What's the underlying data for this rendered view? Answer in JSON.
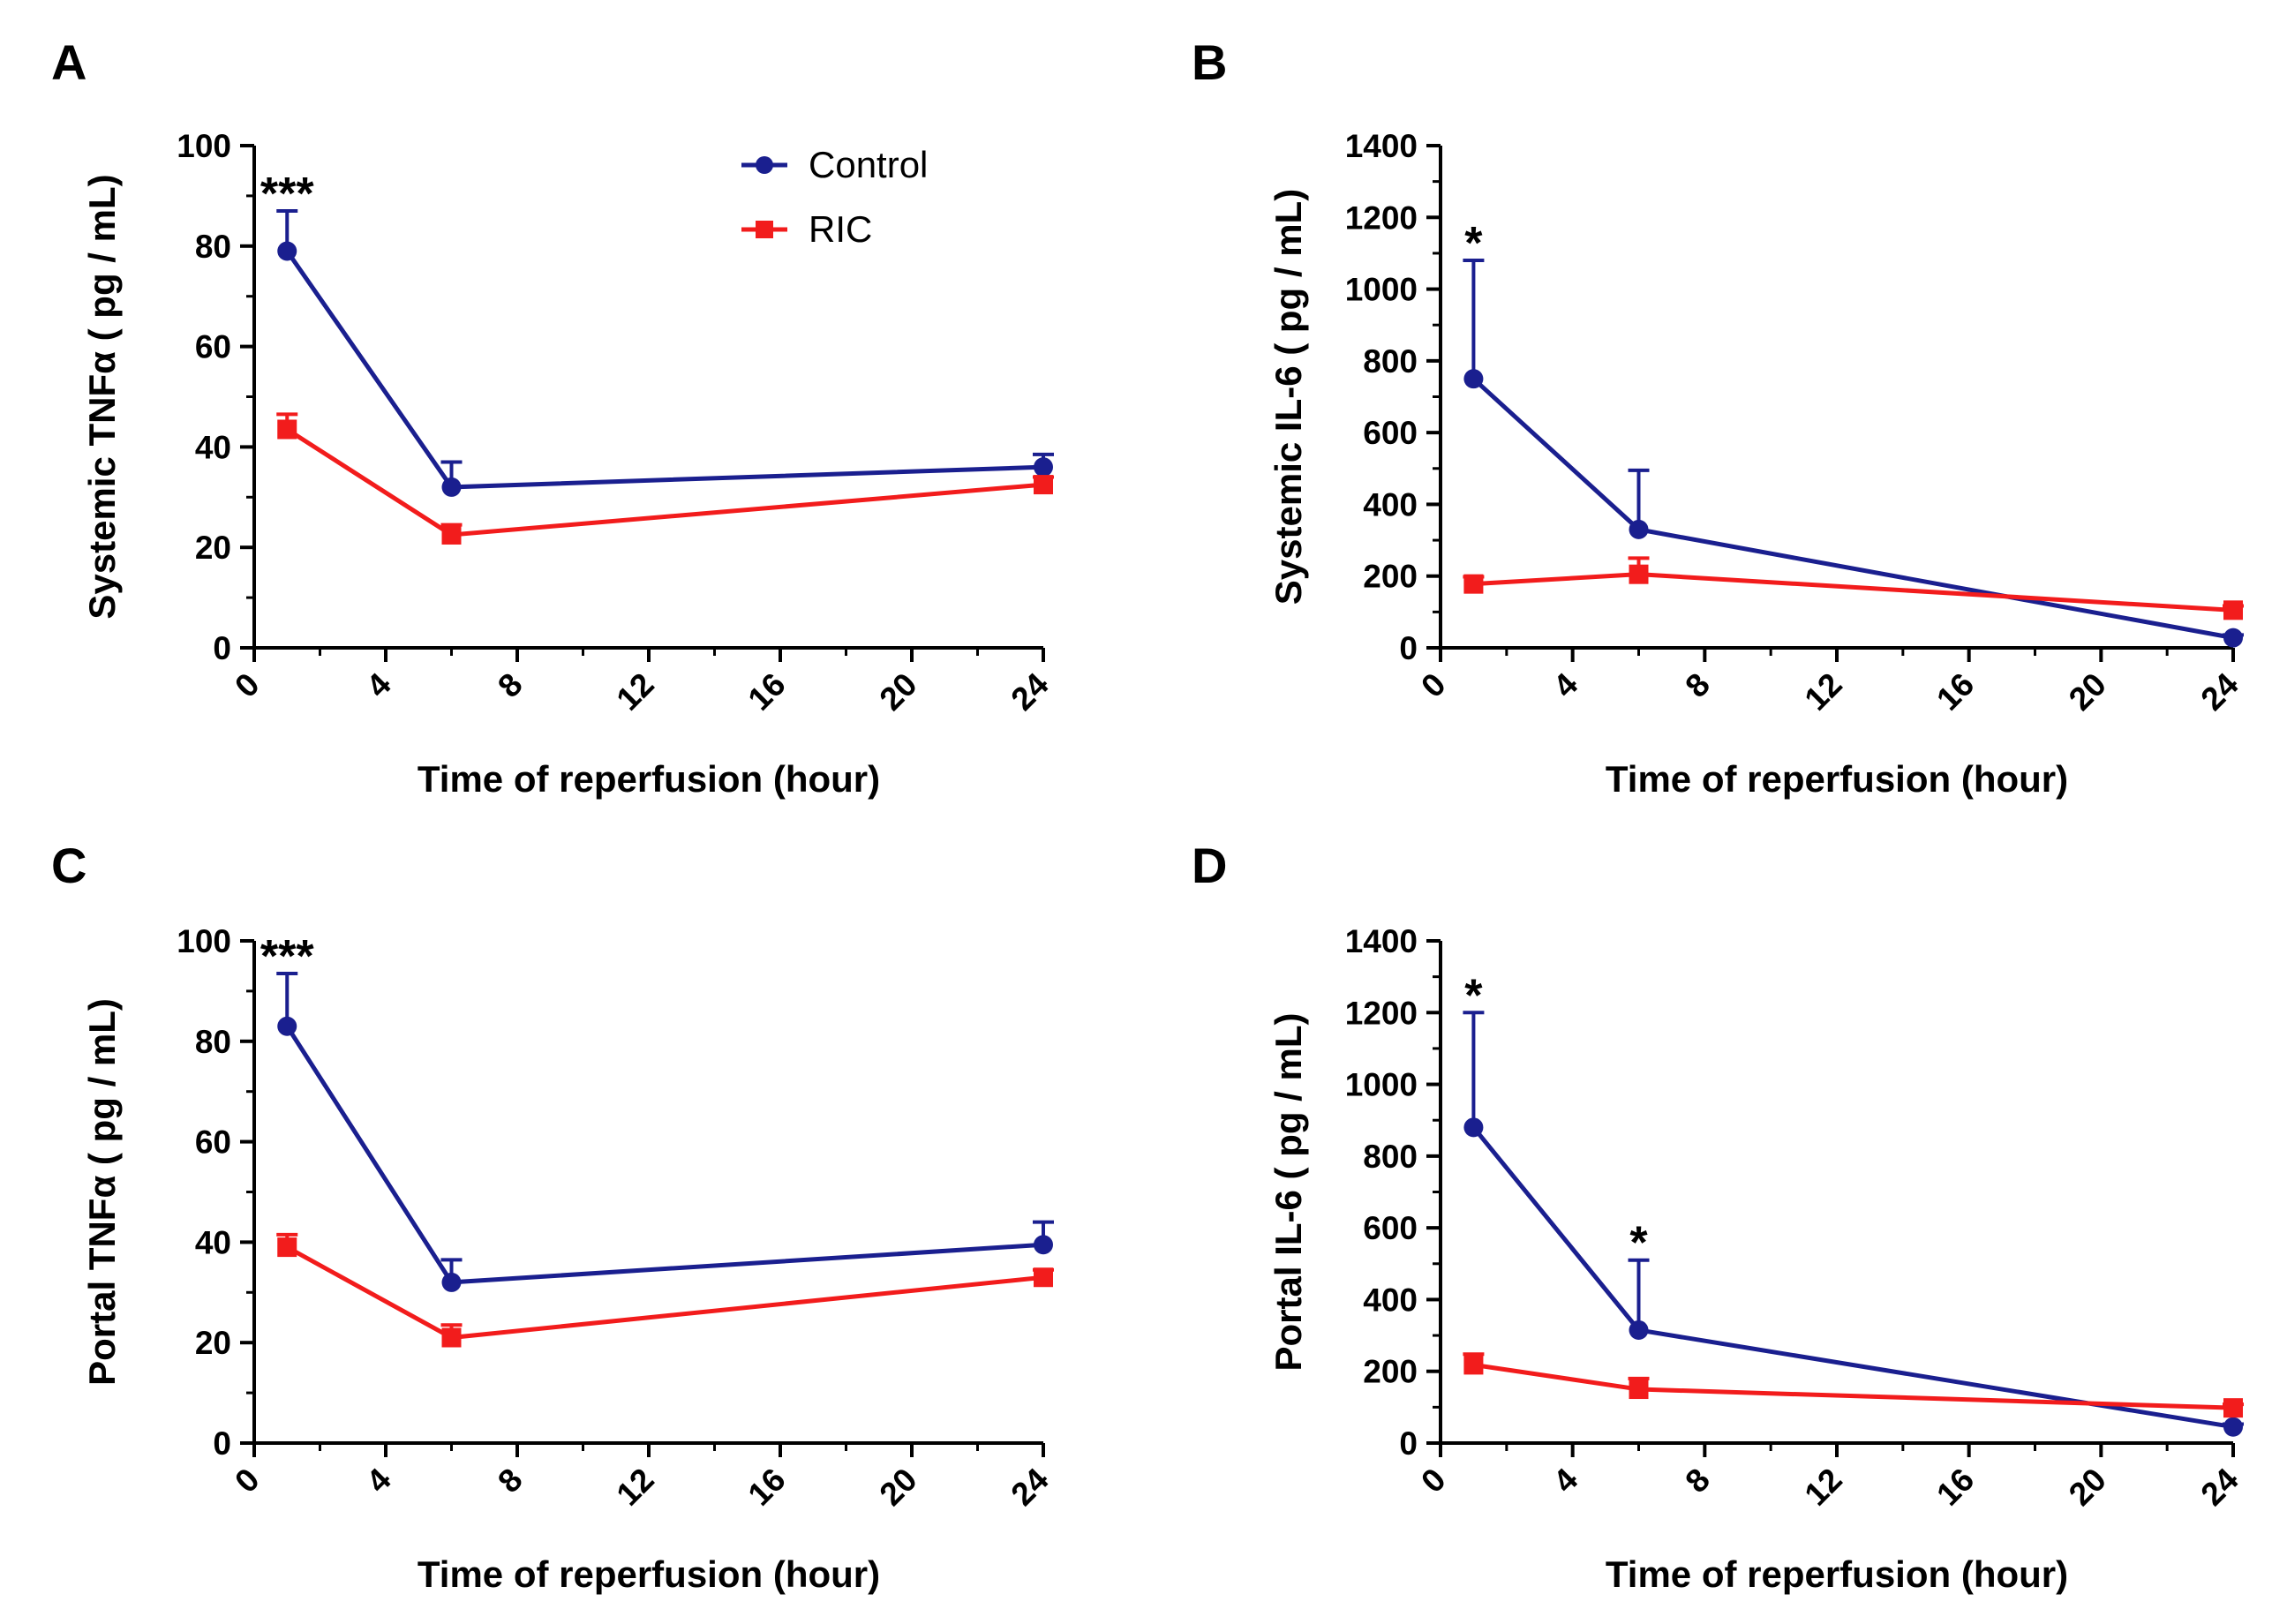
{
  "series_colors": {
    "Control": "#1a1f8f",
    "RIC": "#f21c1c"
  },
  "chart_data": [
    {
      "id": "A",
      "type": "line",
      "panel_label": "A",
      "xlabel": "Time of reperfusion (hour)",
      "ylabel": "Systemic TNFα ( pg / mL)",
      "xlim": [
        0,
        24
      ],
      "xticks": [
        0,
        4,
        8,
        12,
        16,
        20,
        24
      ],
      "ylim": [
        0,
        100
      ],
      "yticks": [
        0,
        20,
        40,
        60,
        80,
        100
      ],
      "grid": false,
      "legend": {
        "position": "top-right",
        "entries": [
          "Control",
          "RIC"
        ]
      },
      "series": [
        {
          "name": "Control",
          "marker": "circle",
          "x": [
            1,
            6,
            24
          ],
          "y": [
            79,
            32,
            36
          ],
          "err": [
            8,
            5,
            2.5
          ]
        },
        {
          "name": "RIC",
          "marker": "square",
          "x": [
            1,
            6,
            24
          ],
          "y": [
            43.5,
            22.5,
            32.5
          ],
          "err": [
            3,
            2,
            1.5
          ]
        }
      ],
      "annotations": [
        {
          "text": "***",
          "x": 1,
          "y": 87
        }
      ]
    },
    {
      "id": "B",
      "type": "line",
      "panel_label": "B",
      "xlabel": "Time of reperfusion (hour)",
      "ylabel": "Systemic IL-6 ( pg / mL)",
      "xlim": [
        0,
        24
      ],
      "xticks": [
        0,
        4,
        8,
        12,
        16,
        20,
        24
      ],
      "ylim": [
        0,
        1400
      ],
      "yticks": [
        0,
        200,
        400,
        600,
        800,
        1000,
        1200,
        1400
      ],
      "grid": false,
      "series": [
        {
          "name": "Control",
          "marker": "circle",
          "x": [
            1,
            6,
            24
          ],
          "y": [
            750,
            330,
            28
          ],
          "err": [
            330,
            165,
            8
          ]
        },
        {
          "name": "RIC",
          "marker": "square",
          "x": [
            1,
            6,
            24
          ],
          "y": [
            178,
            205,
            105
          ],
          "err": [
            20,
            45,
            12
          ]
        }
      ],
      "annotations": [
        {
          "text": "*",
          "x": 1,
          "y": 1080
        }
      ]
    },
    {
      "id": "C",
      "type": "line",
      "panel_label": "C",
      "xlabel": "Time of reperfusion (hour)",
      "ylabel": "Portal TNFα ( pg / mL)",
      "xlim": [
        0,
        24
      ],
      "xticks": [
        0,
        4,
        8,
        12,
        16,
        20,
        24
      ],
      "ylim": [
        0,
        100
      ],
      "yticks": [
        0,
        20,
        40,
        60,
        80,
        100
      ],
      "grid": false,
      "series": [
        {
          "name": "Control",
          "marker": "circle",
          "x": [
            1,
            6,
            24
          ],
          "y": [
            83,
            32,
            39.5
          ],
          "err": [
            10.5,
            4.5,
            4.5
          ]
        },
        {
          "name": "RIC",
          "marker": "square",
          "x": [
            1,
            6,
            24
          ],
          "y": [
            39,
            21,
            33
          ],
          "err": [
            2.5,
            2.5,
            1.5
          ]
        }
      ],
      "annotations": [
        {
          "text": "***",
          "x": 1,
          "y": 93.5
        }
      ]
    },
    {
      "id": "D",
      "type": "line",
      "panel_label": "D",
      "xlabel": "Time of reperfusion (hour)",
      "ylabel": "Portal IL-6 ( pg / mL)",
      "xlim": [
        0,
        24
      ],
      "xticks": [
        0,
        4,
        8,
        12,
        16,
        20,
        24
      ],
      "ylim": [
        0,
        1400
      ],
      "yticks": [
        0,
        200,
        400,
        600,
        800,
        1000,
        1200,
        1400
      ],
      "grid": false,
      "series": [
        {
          "name": "Control",
          "marker": "circle",
          "x": [
            1,
            6,
            24
          ],
          "y": [
            880,
            315,
            45
          ],
          "err": [
            320,
            195,
            8
          ]
        },
        {
          "name": "RIC",
          "marker": "square",
          "x": [
            1,
            6,
            24
          ],
          "y": [
            218,
            150,
            98
          ],
          "err": [
            30,
            30,
            10
          ]
        }
      ],
      "annotations": [
        {
          "text": "*",
          "x": 1,
          "y": 1200
        },
        {
          "text": "*",
          "x": 6,
          "y": 510
        }
      ]
    }
  ]
}
